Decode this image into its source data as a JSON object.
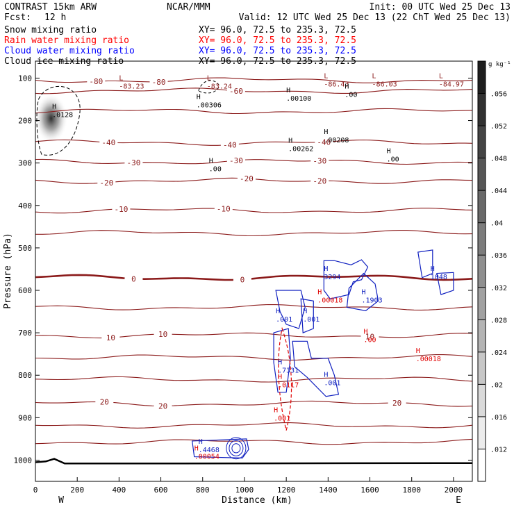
{
  "header": {
    "model": "CONTRAST 15km ARW",
    "center": "NCAR/MMM",
    "init": "Init: 00 UTC Wed 25 Dec 13",
    "fcst_label": "Fcst:",
    "fcst_value": "12 h",
    "valid": "Valid: 12 UTC Wed 25 Dec 13 (22 ChT Wed 25 Dec 13)"
  },
  "legend": [
    {
      "name": "Snow mixing ratio",
      "xy": "XY=  96.0, 72.5 to 235.3, 72.5",
      "color": "#000000"
    },
    {
      "name": "Rain water mixing ratio",
      "xy": "XY=  96.0, 72.5 to 235.3, 72.5",
      "color": "#ff0000"
    },
    {
      "name": "Cloud water mixing ratio",
      "xy": "XY=  96.0, 72.5 to 235.3, 72.5",
      "color": "#0000ff"
    },
    {
      "name": "Cloud ice mixing ratio",
      "xy": "XY=  96.0, 72.5 to 235.3, 72.5",
      "color": "#000000"
    }
  ],
  "colors": {
    "temperature": "#8b1a1a",
    "rain": "#e00000",
    "cloud_water": "#1020c0",
    "snow": "#000000"
  },
  "chart_data": {
    "type": "heatmap",
    "xlabel": "Distance (km)",
    "ylabel": "Pressure (hPa)",
    "x_ticks": [
      0,
      200,
      400,
      600,
      800,
      1000,
      1200,
      1400,
      1600,
      1800,
      2000
    ],
    "x_tick_labels": [
      "0",
      "200",
      "400",
      "600",
      "800",
      "1000",
      "1200",
      "1400",
      "1600",
      "1800",
      "2000"
    ],
    "xlim": [
      0,
      2090
    ],
    "y_ticks": [
      100,
      200,
      300,
      400,
      500,
      600,
      700,
      800,
      900,
      1000
    ],
    "y_tick_labels": [
      "100",
      "200",
      "300",
      "400",
      "500",
      "600",
      "700",
      "800",
      "900",
      "1000"
    ],
    "ylim": [
      60,
      1050
    ],
    "west_label": "W",
    "east_label": "E",
    "colorbar": {
      "unit": "g kg⁻¹",
      "labels": [
        ".056",
        ".052",
        ".048",
        ".044",
        ".04",
        ".036",
        ".032",
        ".028",
        ".024",
        ".02",
        ".016",
        ".012"
      ],
      "values": [
        0.056,
        0.052,
        0.048,
        0.044,
        0.04,
        0.036,
        0.032,
        0.028,
        0.024,
        0.02,
        0.016,
        0.012
      ]
    },
    "isotherms": [
      {
        "value": -80,
        "p": 105,
        "label": "-80",
        "labels_at": [
          290,
          590
        ]
      },
      {
        "value": -60,
        "p": 130,
        "label": "-60",
        "labels_at": [
          960
        ]
      },
      {
        "value": -50,
        "p": 178,
        "label": "",
        "labels_at": []
      },
      {
        "value": -40,
        "p": 252,
        "label": "-40",
        "labels_at": [
          350,
          930,
          1380
        ]
      },
      {
        "value": -30,
        "p": 297,
        "label": "-30",
        "labels_at": [
          470,
          960,
          1360
        ]
      },
      {
        "value": -20,
        "p": 342,
        "label": "-20",
        "labels_at": [
          340,
          1010,
          1360
        ]
      },
      {
        "value": -10,
        "p": 412,
        "label": "-10",
        "labels_at": [
          410,
          900
        ]
      },
      {
        "value": -5,
        "p": 465,
        "label": "",
        "labels_at": []
      },
      {
        "value": 0,
        "p": 570,
        "label": "0",
        "labels_at": [
          470,
          990
        ]
      },
      {
        "value": 5,
        "p": 640,
        "label": "",
        "labels_at": []
      },
      {
        "value": 10,
        "p": 706,
        "label": "10",
        "labels_at": [
          360,
          610,
          1600
        ]
      },
      {
        "value": 15,
        "p": 758,
        "label": "",
        "labels_at": []
      },
      {
        "value": 17,
        "p": 810,
        "label": "",
        "labels_at": []
      },
      {
        "value": 20,
        "p": 867,
        "label": "20",
        "labels_at": [
          330,
          610,
          1730
        ]
      },
      {
        "value": 25,
        "p": 918,
        "label": "",
        "labels_at": []
      },
      {
        "value": 27,
        "p": 957,
        "label": "",
        "labels_at": []
      }
    ],
    "temperature_extrema": [
      {
        "x": 400,
        "p": 115,
        "text": "-83.23"
      },
      {
        "x": 820,
        "p": 115,
        "text": "-83.24"
      },
      {
        "x": 1380,
        "p": 110,
        "text": "-86.43"
      },
      {
        "x": 1610,
        "p": 110,
        "text": "-86.03"
      },
      {
        "x": 1930,
        "p": 110,
        "text": "-84.97"
      }
    ],
    "snow_extrema": [
      {
        "x": 770,
        "p": 162,
        "text": ".00306"
      },
      {
        "x": 1200,
        "p": 147,
        "text": ".00100"
      },
      {
        "x": 1480,
        "p": 138,
        "text": ".00"
      },
      {
        "x": 1210,
        "p": 265,
        "text": ".00262"
      },
      {
        "x": 1380,
        "p": 245,
        "text": ".00208"
      },
      {
        "x": 1680,
        "p": 290,
        "text": ".00"
      },
      {
        "x": 830,
        "p": 313,
        "text": ".00"
      }
    ],
    "ice_extrema": [
      {
        "x": 80,
        "p": 185,
        "text": ".0128"
      }
    ],
    "cloud_water_extrema": [
      {
        "x": 1380,
        "p": 567,
        "text": "3294"
      },
      {
        "x": 1560,
        "p": 622,
        "text": ".1903"
      },
      {
        "x": 1890,
        "p": 567,
        "text": "1048"
      },
      {
        "x": 1150,
        "p": 667,
        "text": ".001"
      },
      {
        "x": 1280,
        "p": 667,
        "text": ".001"
      },
      {
        "x": 1160,
        "p": 787,
        "text": ".7331"
      },
      {
        "x": 1380,
        "p": 817,
        "text": ".001"
      },
      {
        "x": 780,
        "p": 975,
        "text": ".4468"
      }
    ],
    "rain_extrema": [
      {
        "x": 1350,
        "p": 622,
        "text": ".00018"
      },
      {
        "x": 1570,
        "p": 715,
        "text": ".00"
      },
      {
        "x": 1820,
        "p": 760,
        "text": ".00018"
      },
      {
        "x": 1160,
        "p": 822,
        "text": ".0117"
      },
      {
        "x": 1140,
        "p": 900,
        "text": ".001"
      },
      {
        "x": 760,
        "p": 990,
        "text": ".00054"
      }
    ],
    "surface_pressure": [
      {
        "x": 0,
        "p": 1005
      },
      {
        "x": 50,
        "p": 1003
      },
      {
        "x": 90,
        "p": 997
      },
      {
        "x": 140,
        "p": 1008
      },
      {
        "x": 500,
        "p": 1008
      },
      {
        "x": 2090,
        "p": 1007
      }
    ]
  }
}
